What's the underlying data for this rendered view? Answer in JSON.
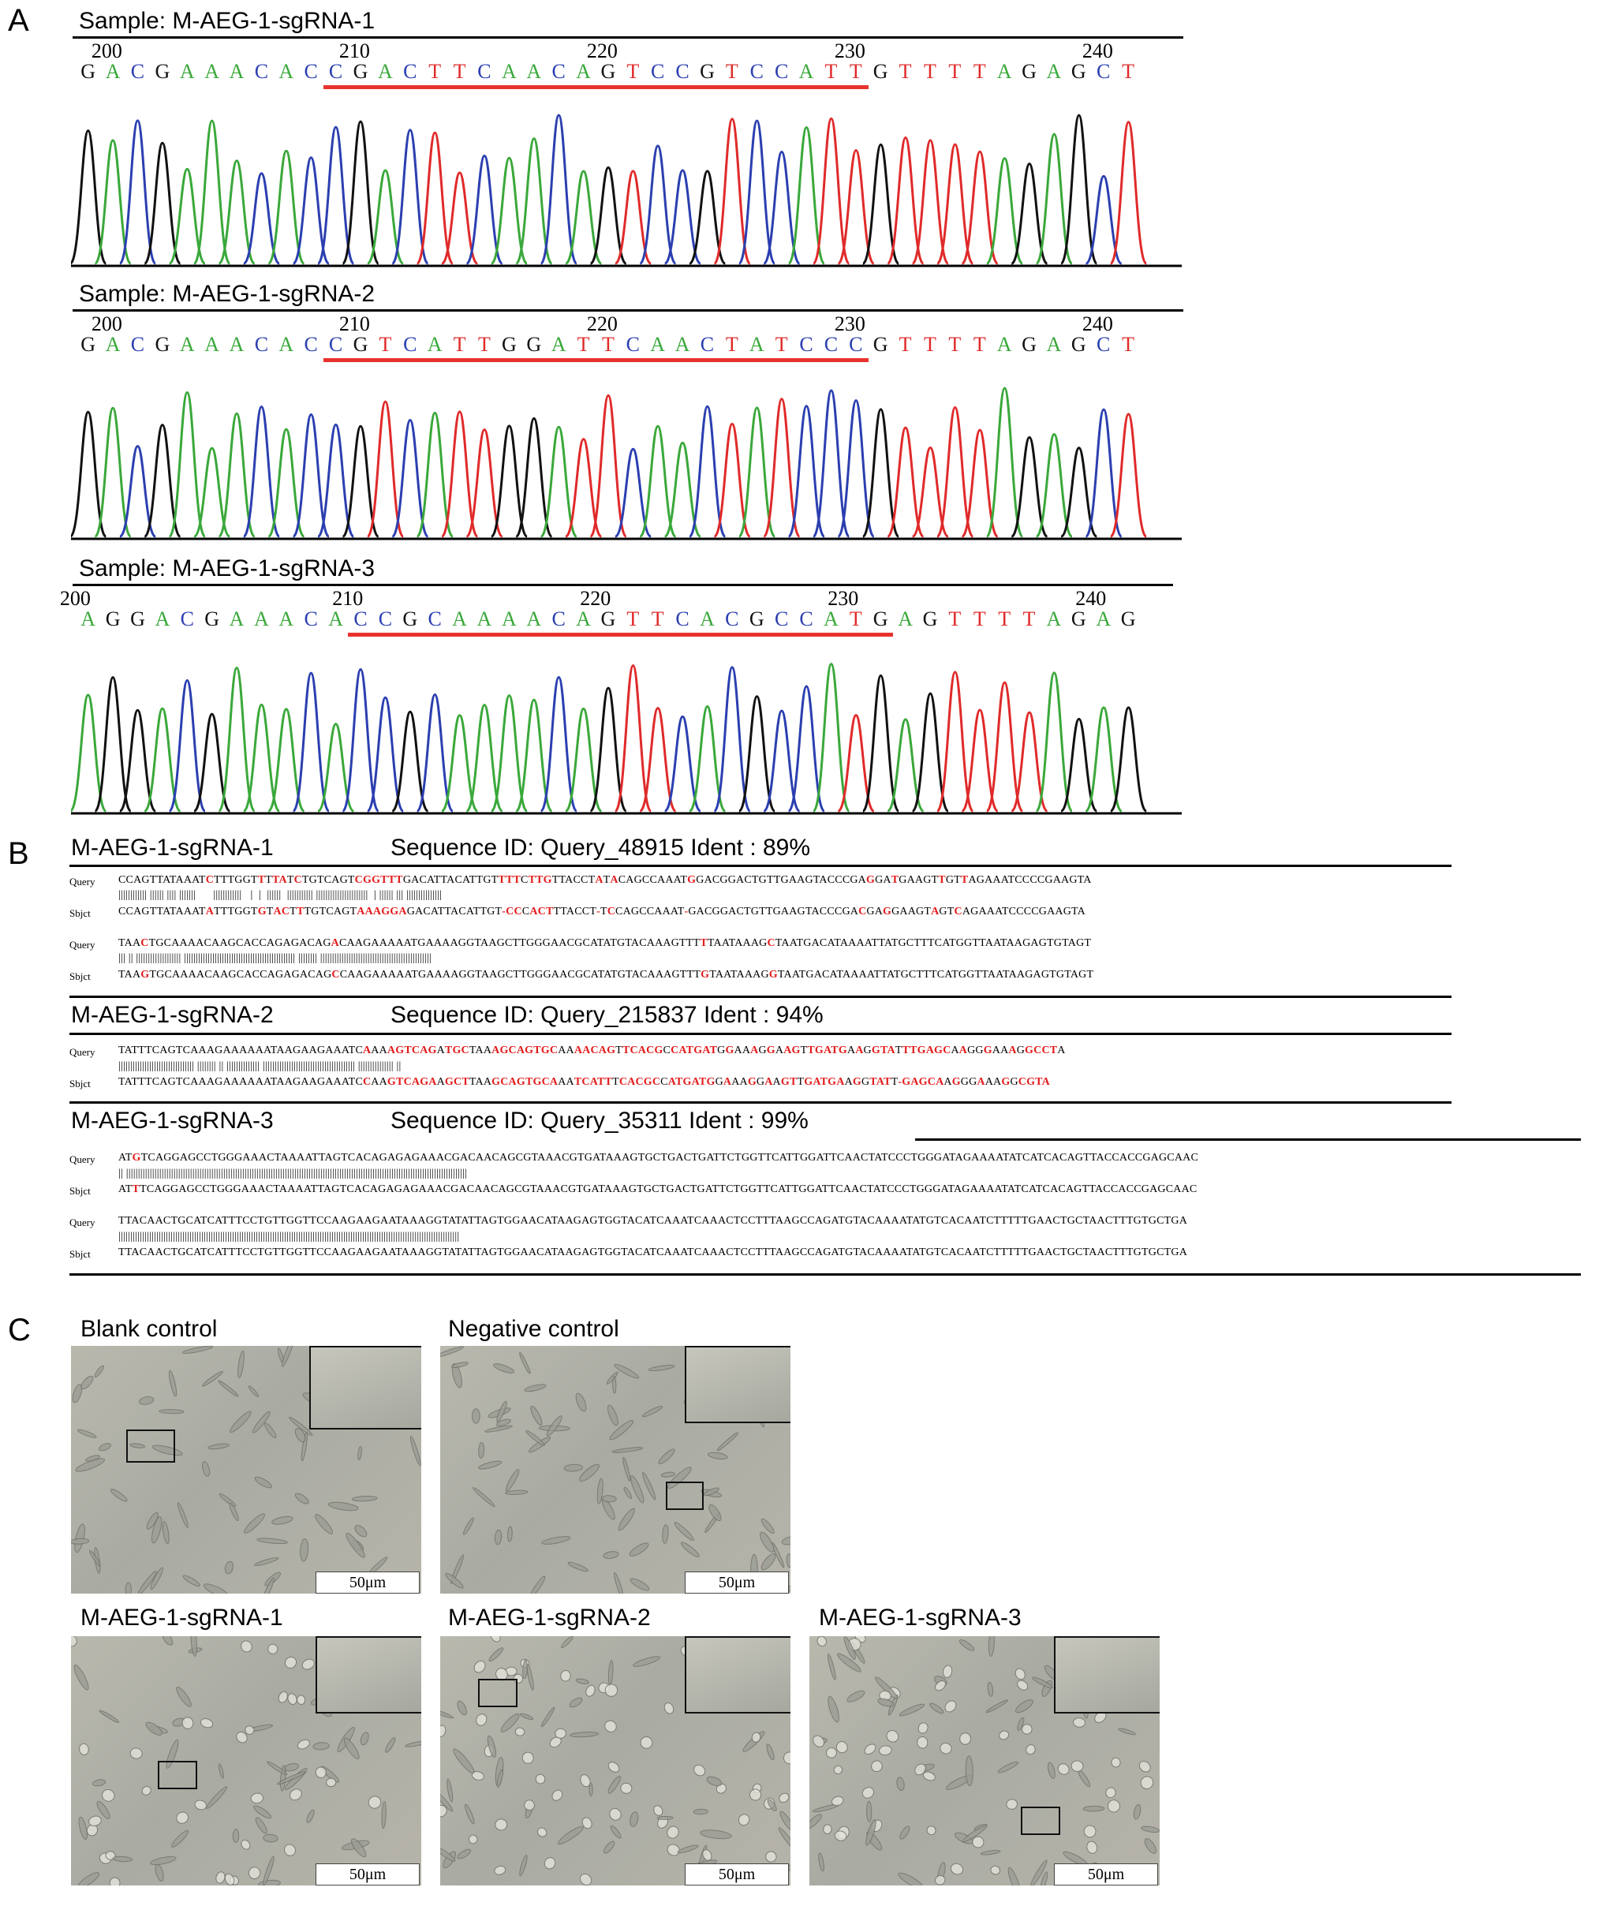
{
  "panels": {
    "a": "A",
    "b": "B",
    "c": "C"
  },
  "panel_a": {
    "samples": [
      {
        "title": "Sample: M-AEG-1-sgRNA-1",
        "ruler": [
          "200",
          "210",
          "220",
          "230",
          "240"
        ],
        "sequence": "GACGAAACACCGACTTCAACAGTCCGTCCATTGTTTTAGAGCT",
        "underline_from": 10,
        "underline_to": 32
      },
      {
        "title": "Sample: M-AEG-1-sgRNA-2",
        "ruler": [
          "200",
          "210",
          "220",
          "230",
          "240"
        ],
        "sequence": "GACGAAACACCGTCATTGGATTCAACTATCCCGTTTTAGAGCT",
        "underline_from": 10,
        "underline_to": 32
      },
      {
        "title": "Sample: M-AEG-1-sgRNA-3",
        "ruler": [
          "200",
          "210",
          "220",
          "230",
          "240"
        ],
        "sequence": "AGGACGAAACACCGCAAAACAGTTCACGCCATGAGTTTTAGAG",
        "underline_from": 11,
        "underline_to": 33
      }
    ],
    "base_colors": {
      "A": "#3aa83a",
      "C": "#2b3fb0",
      "G": "#111111",
      "T": "#e02a2a"
    },
    "underline_color": "#e8322d"
  },
  "panel_b": {
    "alignments": [
      {
        "sample": "M-AEG-1-sgRNA-1",
        "info": "Sequence ID: Query_48915 Ident : 89%",
        "blocks": [
          {
            "query": "CCAGTTATAAATCTTTGGTTTTATCTGTCAGTCGGTTTGACATTACATTGTTTTCTTGTTACCTATACAGCCAAATGGACGGACTGTTGAAGTACCCGAGGATGAAGTTGTTAGAAATCCCCGAAGTA",
            "bars": "|||||||||||| |||||| |||| |||||||      ||||||||||||   |  |  ||||||  ||||||||||| ||||||||||||||||||||||  | |||||| ||| |||||||||||||||",
            "sbjct": "CCAGTTATAAATATTTGGTGTACTTTGTCAGTAAAGGAGACATTACATTGT-CCCACTTTACCT-TCCAGCCAAAT-GACGGACTGTTGAAGTACCCGACGAGGAAGTAGTCAGAAATCCCCGAAGTA"
          },
          {
            "query": "TAACTGCAAAACAAGCACCAGAGACAGACAAGAAAAATGAAAAGGTAAGCTTGGGAACGCATATGTACAAAGTTTTTAATAAAGCTAATGACATAAAATTATGCTTTCATGGTTAATAAGAGTGTAGT",
            "bars": "||| || ||||||||||||||||||| ||||||||||||||||||||||||||||||||||||||||||||||| |||||||| |||||||||||||||||||||||||||||||||||||||||||||||",
            "sbjct": "TAAGTGCAAAACAAGCACCAGAGACAGCCAAGAAAAATGAAAAGGTAAGCTTGGGAACGCATATGTACAAAGTTTGTAATAAAGGTAATGACATAAAATTATGCTTTCATGGTTAATAAGAGTGTAGT"
          }
        ]
      },
      {
        "sample": "M-AEG-1-sgRNA-2",
        "info": "Sequence ID: Query_215837 Ident : 94%",
        "blocks": [
          {
            "query": "TATTTCAGTCAAAGAAAAAATAAGAAGAAATCAAAAGTCAGATGCTAAAGCAGTGCAAAACAGTTCACGCCATGATGGAAAGGAAGTTGATGAAGGTATTTGAGCAAGGGAAAGGCCTA",
            "bars": "|||||||||||||||||||||||||||||||| |||||||| || |||||||||||||| ||||||||||||||||||||||||||||||||||||||| ||||||||||||||| ||",
            "sbjct": "TATTTCAGTCAAAGAAAAAATAAGAAGAAATCCAAGTCAGAAGCTTAAGCAGTGCAAATCATTTCACGCCATGATGGAAAGGAAGTTGATGAAGGTATT-GAGCAAGGGAAAGGCGTA"
          }
        ]
      },
      {
        "sample": "M-AEG-1-sgRNA-3",
        "info": "Sequence ID: Query_35311 Ident : 99%",
        "blocks": [
          {
            "query": "ATGTCAGGAGCCTGGGAAACTAAAATTAGTCACAGAGAGAAACGACAACAGCGTAAACGTGATAAAGTGCTGACTGATTCTGGTTCATTGGATTCAACTATCCCTGGGATAGAAAATATCATCACAGTTACCACCGAGCAAC",
            "bars": "|| ||||||||||||||||||||||||||||||||||||||||||||||||||||||||||||||||||||||||||||||||||||||||||||||||||||||||||||||||||||||||||||||||||||||||||||||||",
            "sbjct": "ATTTCAGGAGCCTGGGAAACTAAAATTAGTCACAGAGAGAAACGACAACAGCGTAAACGTGATAAAGTGCTGACTGATTCTGGTTCATTGGATTCAACTATCCCTGGGATAGAAAATATCATCACAGTTACCACCGAGCAAC"
          },
          {
            "query": "TTACAACTGCATCATTTCCTGTTGGTTCCAAGAAGAATAAAGGTATATTAGTGGAACATAAGAGTGGTACATCAAATCAAACTCCTTTAAGCCAGATGTACAAAATATGTCACAATCTTTTTGAACTGCTAACTTTGTGCTGA",
            "bars": "||||||||||||||||||||||||||||||||||||||||||||||||||||||||||||||||||||||||||||||||||||||||||||||||||||||||||||||||||||||||||||||||||||||||||||||||",
            "sbjct": "TTACAACTGCATCATTTCCTGTTGGTTCCAAGAAGAATAAAGGTATATTAGTGGAACATAAGAGTGGTACATCAAATCAAACTCCTTTAAGCCAGATGTACAAAATATGTCACAATCTTTTTGAACTGCTAACTTTGTGCTGA"
          }
        ]
      }
    ],
    "query_label": "Query",
    "sbjct_label": "Sbjct"
  },
  "panel_c": {
    "photos": [
      {
        "label": "Blank control",
        "scale": "50μm"
      },
      {
        "label": "Negative control",
        "scale": "50μm"
      },
      {
        "label": "M-AEG-1-sgRNA-1",
        "scale": "50μm"
      },
      {
        "label": "M-AEG-1-sgRNA-2",
        "scale": "50μm"
      },
      {
        "label": "M-AEG-1-sgRNA-3",
        "scale": "50μm"
      }
    ]
  }
}
